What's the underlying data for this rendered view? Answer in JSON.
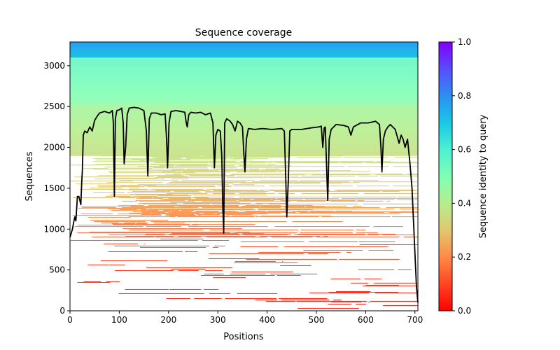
{
  "chart_data": {
    "type": "heatmap",
    "title": "Sequence coverage",
    "xlabel": "Positions",
    "ylabel": "Sequences",
    "xlim": [
      0,
      706
    ],
    "ylim": [
      0,
      3290
    ],
    "xticks": [
      0,
      100,
      200,
      300,
      400,
      500,
      600,
      700
    ],
    "xtick_labels": [
      "0",
      "100",
      "200",
      "300",
      "400",
      "500",
      "600",
      "700"
    ],
    "yticks": [
      0,
      500,
      1000,
      1500,
      2000,
      2500,
      3000
    ],
    "ytick_labels": [
      "0",
      "500",
      "1000",
      "1500",
      "2000",
      "2500",
      "3000"
    ],
    "grid": false,
    "colorbar": {
      "label": "Sequence identity to query",
      "colormap": "rainbow_r",
      "range": [
        0,
        1
      ],
      "ticks": [
        0.0,
        0.2,
        0.4,
        0.6,
        0.8,
        1.0
      ],
      "tick_labels": [
        "0.0",
        "0.2",
        "0.4",
        "0.6",
        "0.8",
        "1.0"
      ],
      "stops": [
        {
          "value": 0.0,
          "color": "#ff0000"
        },
        {
          "value": 0.2,
          "color": "#ff8a47"
        },
        {
          "value": 0.3,
          "color": "#e0c870"
        },
        {
          "value": 0.4,
          "color": "#b5ee8c"
        },
        {
          "value": 0.5,
          "color": "#80ffb4"
        },
        {
          "value": 0.6,
          "color": "#4ef0d2"
        },
        {
          "value": 0.7,
          "color": "#1ac8e6"
        },
        {
          "value": 0.8,
          "color": "#2c8ff2"
        },
        {
          "value": 0.9,
          "color": "#5a4cfc"
        },
        {
          "value": 1.0,
          "color": "#8000ff"
        }
      ]
    },
    "identity_bands": [
      {
        "from": 3100,
        "to": 3290,
        "identity": 0.74
      },
      {
        "from": 2530,
        "to": 3100,
        "identity": 0.52
      },
      {
        "from": 1900,
        "to": 2530,
        "identity": 0.4
      },
      {
        "from": 1500,
        "to": 1900,
        "identity": 0.33
      },
      {
        "from": 1250,
        "to": 1500,
        "identity": 0.26
      },
      {
        "from": 900,
        "to": 1250,
        "identity": 0.18
      },
      {
        "from": 0,
        "to": 900,
        "identity": 0.08
      }
    ],
    "coverage_line": {
      "name": "coverage",
      "color": "#000000",
      "x": [
        0,
        3,
        5,
        8,
        10,
        12,
        15,
        18,
        20,
        22,
        24,
        25,
        27,
        30,
        35,
        40,
        45,
        50,
        55,
        60,
        70,
        80,
        86,
        88,
        90,
        92,
        95,
        100,
        105,
        108,
        110,
        113,
        116,
        120,
        130,
        140,
        150,
        155,
        158,
        161,
        165,
        175,
        185,
        193,
        196,
        198,
        201,
        205,
        215,
        225,
        233,
        236,
        238,
        241,
        245,
        255,
        265,
        275,
        285,
        290,
        293,
        296,
        300,
        305,
        308,
        310,
        312,
        314,
        318,
        325,
        330,
        335,
        340,
        345,
        350,
        353,
        355,
        358,
        362,
        375,
        390,
        410,
        430,
        435,
        438,
        440,
        443,
        446,
        450,
        470,
        490,
        505,
        510,
        513,
        516,
        518,
        521,
        523,
        526,
        530,
        540,
        555,
        565,
        570,
        575,
        590,
        605,
        620,
        628,
        631,
        633,
        636,
        640,
        645,
        650,
        660,
        668,
        672,
        676,
        680,
        685,
        690,
        694,
        697,
        700,
        703,
        706
      ],
      "y": [
        900,
        960,
        1000,
        1100,
        1150,
        1100,
        1400,
        1400,
        1350,
        1300,
        1600,
        1700,
        2150,
        2200,
        2180,
        2250,
        2200,
        2330,
        2380,
        2420,
        2440,
        2420,
        2450,
        2300,
        1400,
        2350,
        2450,
        2460,
        2480,
        2300,
        1800,
        2000,
        2400,
        2480,
        2490,
        2480,
        2450,
        2200,
        1650,
        2350,
        2420,
        2420,
        2400,
        2410,
        2100,
        1750,
        2300,
        2440,
        2450,
        2440,
        2430,
        2300,
        2250,
        2400,
        2430,
        2420,
        2430,
        2400,
        2420,
        2300,
        1750,
        2150,
        2220,
        2200,
        1900,
        1300,
        950,
        2300,
        2350,
        2320,
        2280,
        2200,
        2320,
        2300,
        2250,
        1900,
        1700,
        2100,
        2230,
        2220,
        2230,
        2220,
        2230,
        2200,
        1600,
        1150,
        1600,
        2200,
        2220,
        2220,
        2240,
        2250,
        2260,
        2000,
        2240,
        2250,
        1700,
        1350,
        2100,
        2220,
        2280,
        2270,
        2250,
        2150,
        2250,
        2300,
        2300,
        2320,
        2280,
        2000,
        1700,
        2100,
        2200,
        2250,
        2280,
        2220,
        2050,
        2150,
        2100,
        2000,
        2100,
        1800,
        1500,
        1100,
        700,
        300,
        100
      ]
    }
  }
}
